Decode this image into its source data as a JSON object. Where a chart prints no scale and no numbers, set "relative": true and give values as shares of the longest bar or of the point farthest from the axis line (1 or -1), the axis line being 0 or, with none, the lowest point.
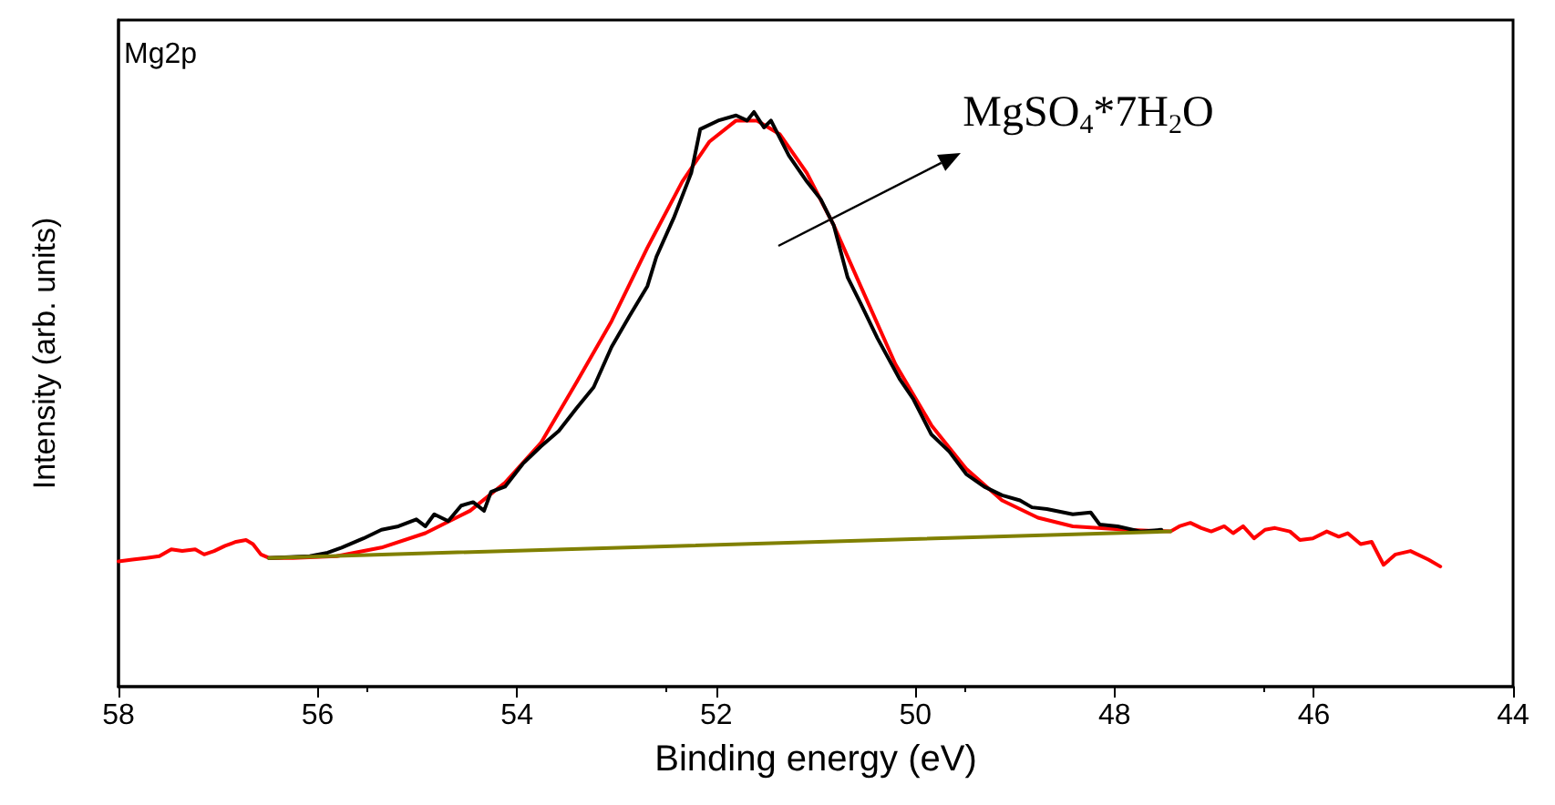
{
  "chart_data": {
    "type": "line",
    "relative": true,
    "xlabel": "Binding energy (eV)",
    "ylabel": "Intensity (arb. units)",
    "xlim": [
      58,
      44
    ],
    "xticks": [
      58,
      56,
      54,
      52,
      50,
      48,
      46,
      44
    ],
    "tick_labels": "x",
    "grid": false,
    "marker": "none",
    "line_style": "solid",
    "annotations": [
      "Mg2p",
      "MgSO$_{4}$*7H$_{2}$O"
    ],
    "series": [
      {
        "color": "#ff0000",
        "x": [
          58.0,
          57.86,
          57.72,
          57.59,
          57.47,
          57.36,
          57.23,
          57.14,
          57.04,
          56.93,
          56.82,
          56.72,
          56.65,
          56.57,
          56.49,
          56.25,
          55.81,
          55.36,
          54.92,
          54.47,
          54.12,
          53.76,
          53.4,
          53.05,
          52.69,
          52.34,
          52.07,
          51.8,
          51.59,
          51.36,
          51.09,
          50.82,
          50.55,
          50.2,
          49.84,
          49.49,
          49.13,
          48.77,
          48.42,
          47.88,
          47.44,
          47.35,
          47.24,
          47.13,
          47.03,
          46.9,
          46.81,
          46.71,
          46.6,
          46.49,
          46.39,
          46.24,
          46.14,
          46.01,
          45.87,
          45.75,
          45.66,
          45.53,
          45.42,
          45.3,
          45.18,
          45.03,
          44.85,
          44.73
        ],
        "values": [
          0.218,
          0.221,
          0.224,
          0.227,
          0.239,
          0.236,
          0.239,
          0.23,
          0.236,
          0.245,
          0.252,
          0.255,
          0.248,
          0.23,
          0.224,
          0.224,
          0.227,
          0.242,
          0.267,
          0.306,
          0.355,
          0.424,
          0.53,
          0.636,
          0.764,
          0.879,
          0.948,
          0.985,
          0.985,
          0.961,
          0.894,
          0.803,
          0.697,
          0.561,
          0.455,
          0.379,
          0.324,
          0.294,
          0.279,
          0.273,
          0.27,
          0.279,
          0.285,
          0.276,
          0.27,
          0.279,
          0.267,
          0.279,
          0.258,
          0.273,
          0.276,
          0.27,
          0.255,
          0.258,
          0.27,
          0.261,
          0.267,
          0.248,
          0.252,
          0.212,
          0.23,
          0.236,
          0.221,
          0.209
        ]
      },
      {
        "color": "#000000",
        "x": [
          56.49,
          56.08,
          55.9,
          55.76,
          55.54,
          55.36,
          55.19,
          55.01,
          54.92,
          54.83,
          54.69,
          54.56,
          54.44,
          54.33,
          54.26,
          54.12,
          53.94,
          53.76,
          53.58,
          53.4,
          53.23,
          53.05,
          52.87,
          52.69,
          52.6,
          52.42,
          52.25,
          52.16,
          51.98,
          51.8,
          51.69,
          51.62,
          51.52,
          51.45,
          51.27,
          51.09,
          50.95,
          50.82,
          50.68,
          50.55,
          50.38,
          50.16,
          50.02,
          49.84,
          49.66,
          49.49,
          49.31,
          49.13,
          48.95,
          48.83,
          48.68,
          48.42,
          48.24,
          48.15,
          47.97,
          47.74,
          47.53
        ],
        "values": [
          0.224,
          0.227,
          0.233,
          0.242,
          0.258,
          0.273,
          0.279,
          0.291,
          0.279,
          0.3,
          0.288,
          0.315,
          0.321,
          0.306,
          0.339,
          0.348,
          0.388,
          0.418,
          0.445,
          0.485,
          0.521,
          0.591,
          0.645,
          0.697,
          0.748,
          0.818,
          0.894,
          0.97,
          0.985,
          0.994,
          0.985,
          1.0,
          0.973,
          0.985,
          0.924,
          0.879,
          0.848,
          0.803,
          0.712,
          0.667,
          0.606,
          0.536,
          0.5,
          0.439,
          0.409,
          0.37,
          0.348,
          0.333,
          0.324,
          0.312,
          0.309,
          0.3,
          0.303,
          0.282,
          0.279,
          0.27,
          0.273
        ]
      },
      {
        "color": "#808000",
        "x": [
          56.49,
          47.44
        ],
        "values": [
          0.224,
          0.27
        ]
      }
    ]
  }
}
